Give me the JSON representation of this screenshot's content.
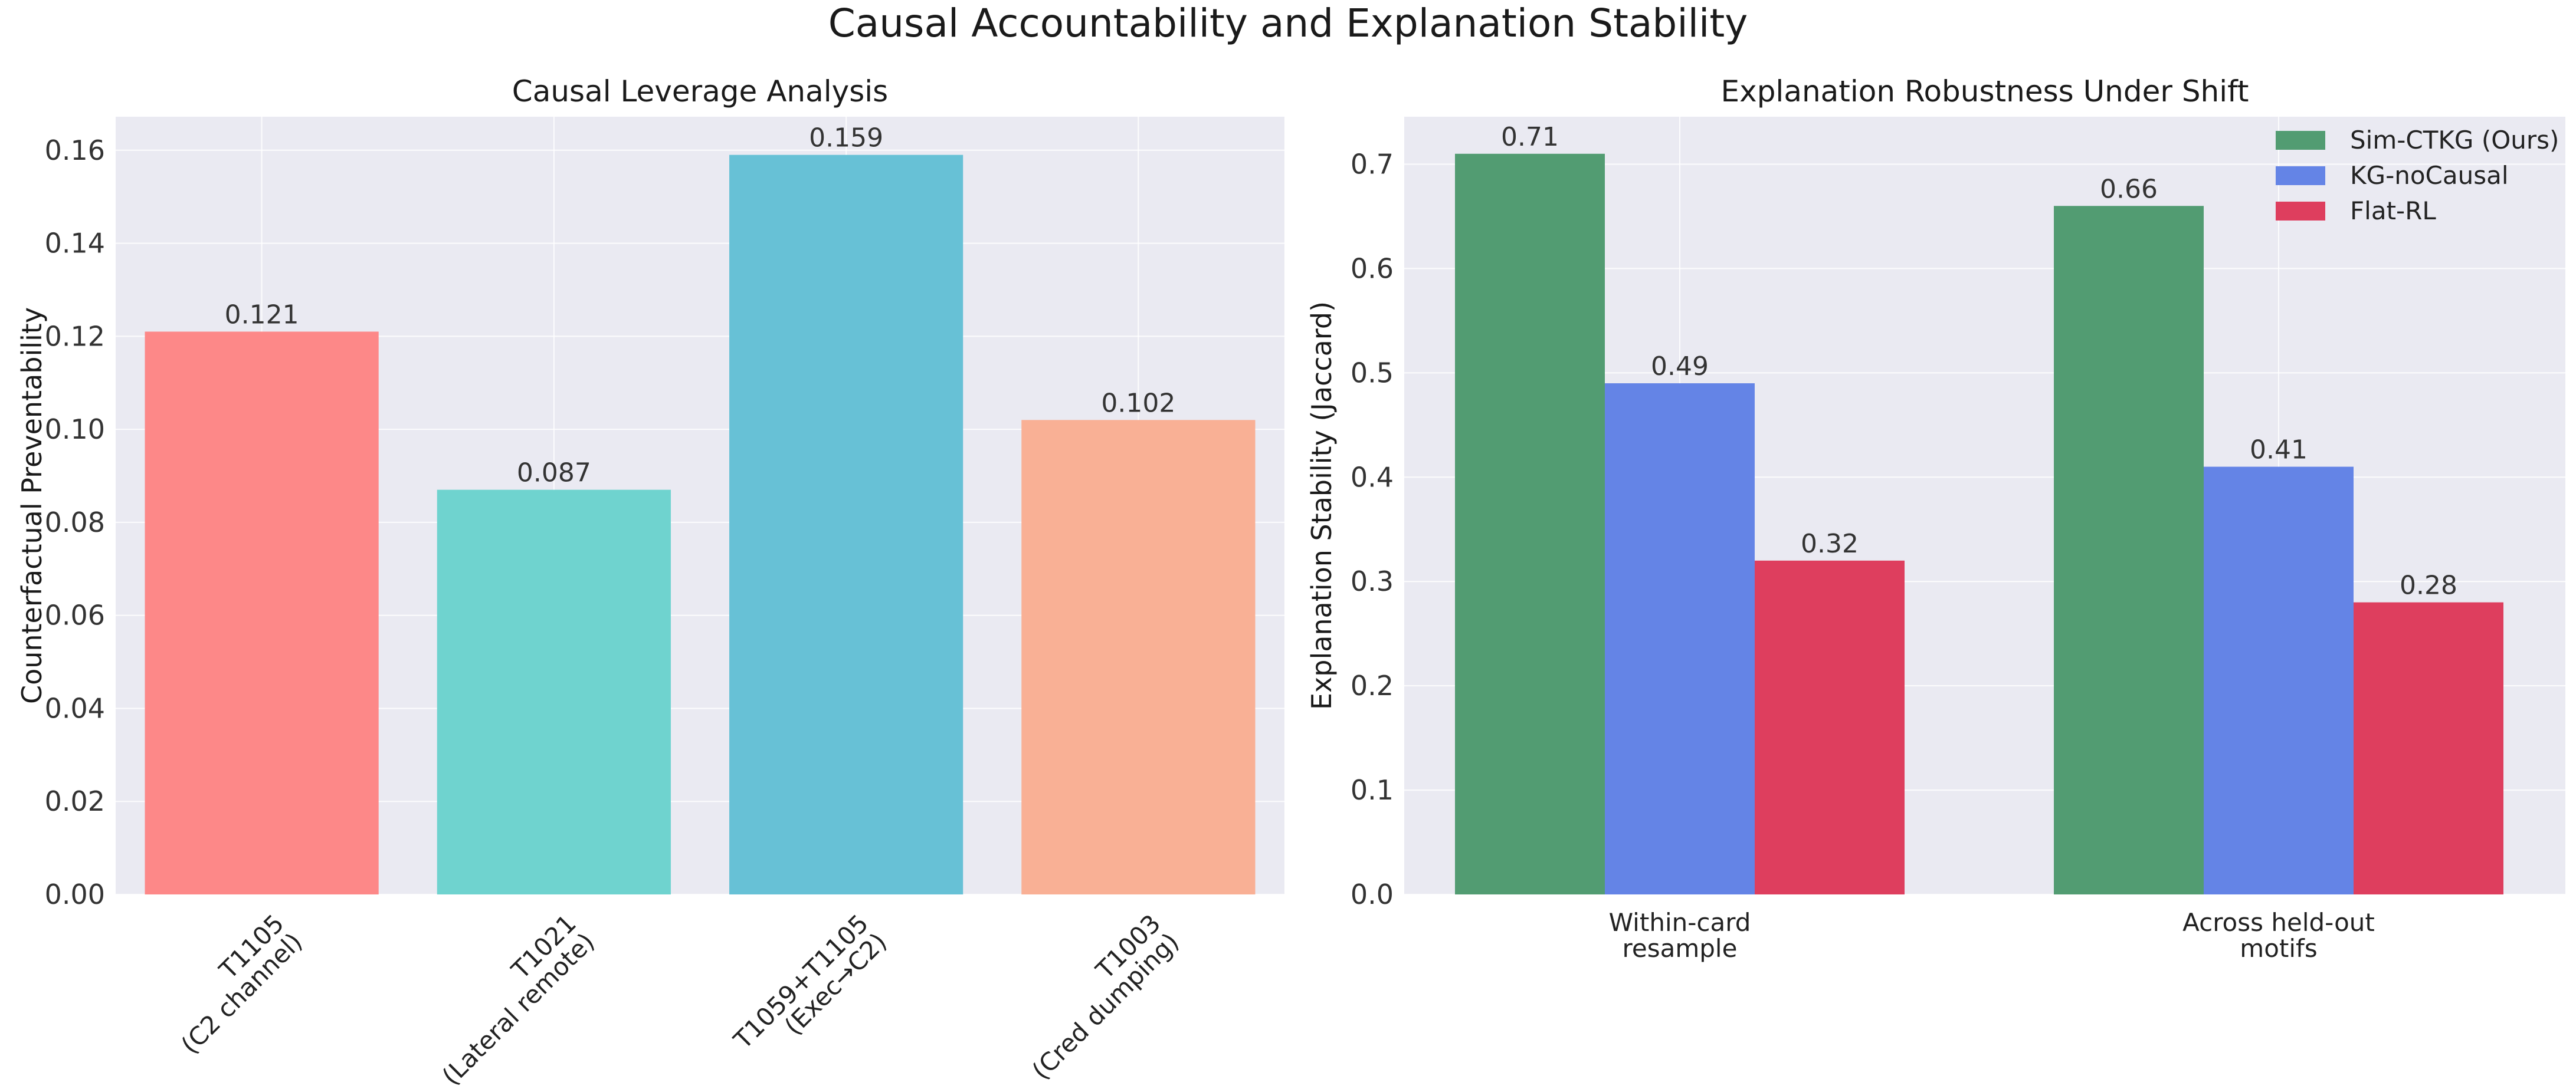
{
  "figure_title": "Causal Accountability and Explanation Stability",
  "chart_data": [
    {
      "type": "bar",
      "title": "Causal Leverage Analysis",
      "xlabel": "",
      "ylabel": "Counterfactual Preventability",
      "ylim": [
        0,
        0.1672
      ],
      "yticks": [
        "0.00",
        "0.02",
        "0.04",
        "0.06",
        "0.08",
        "0.10",
        "0.12",
        "0.14",
        "0.16"
      ],
      "grid": true,
      "categories": [
        [
          "T1105",
          "(C2 channel)"
        ],
        [
          "T1021",
          "(Lateral remote)"
        ],
        [
          "T1059+T1105",
          "(Exec→C2)"
        ],
        [
          "T1003",
          "(Cred dumping)"
        ]
      ],
      "values": [
        0.121,
        0.087,
        0.159,
        0.102
      ],
      "value_labels": [
        "0.121",
        "0.087",
        "0.159",
        "0.102"
      ],
      "colors": [
        "#fd8888",
        "#6fd3cf",
        "#67c1d6",
        "#f9b095"
      ]
    },
    {
      "type": "bar",
      "title": "Explanation Robustness Under Shift",
      "xlabel": "",
      "ylabel": "Explanation Stability (Jaccard)",
      "ylim": [
        0,
        0.7455
      ],
      "yticks": [
        "0.0",
        "0.1",
        "0.2",
        "0.3",
        "0.4",
        "0.5",
        "0.6",
        "0.7"
      ],
      "grid": true,
      "legend_position": "top-right",
      "categories": [
        [
          "Within-card",
          "resample"
        ],
        [
          "Across held-out",
          "motifs"
        ]
      ],
      "series": [
        {
          "name": "Sim-CTKG (Ours)",
          "values": [
            0.71,
            0.66
          ],
          "value_labels": [
            "0.71",
            "0.66"
          ],
          "color": "#529c72"
        },
        {
          "name": "KG-noCausal",
          "values": [
            0.49,
            0.41
          ],
          "value_labels": [
            "0.49",
            "0.41"
          ],
          "color": "#6484e6"
        },
        {
          "name": "Flat-RL",
          "values": [
            0.32,
            0.28
          ],
          "value_labels": [
            "0.32",
            "0.28"
          ],
          "color": "#de3e5e"
        }
      ]
    }
  ]
}
